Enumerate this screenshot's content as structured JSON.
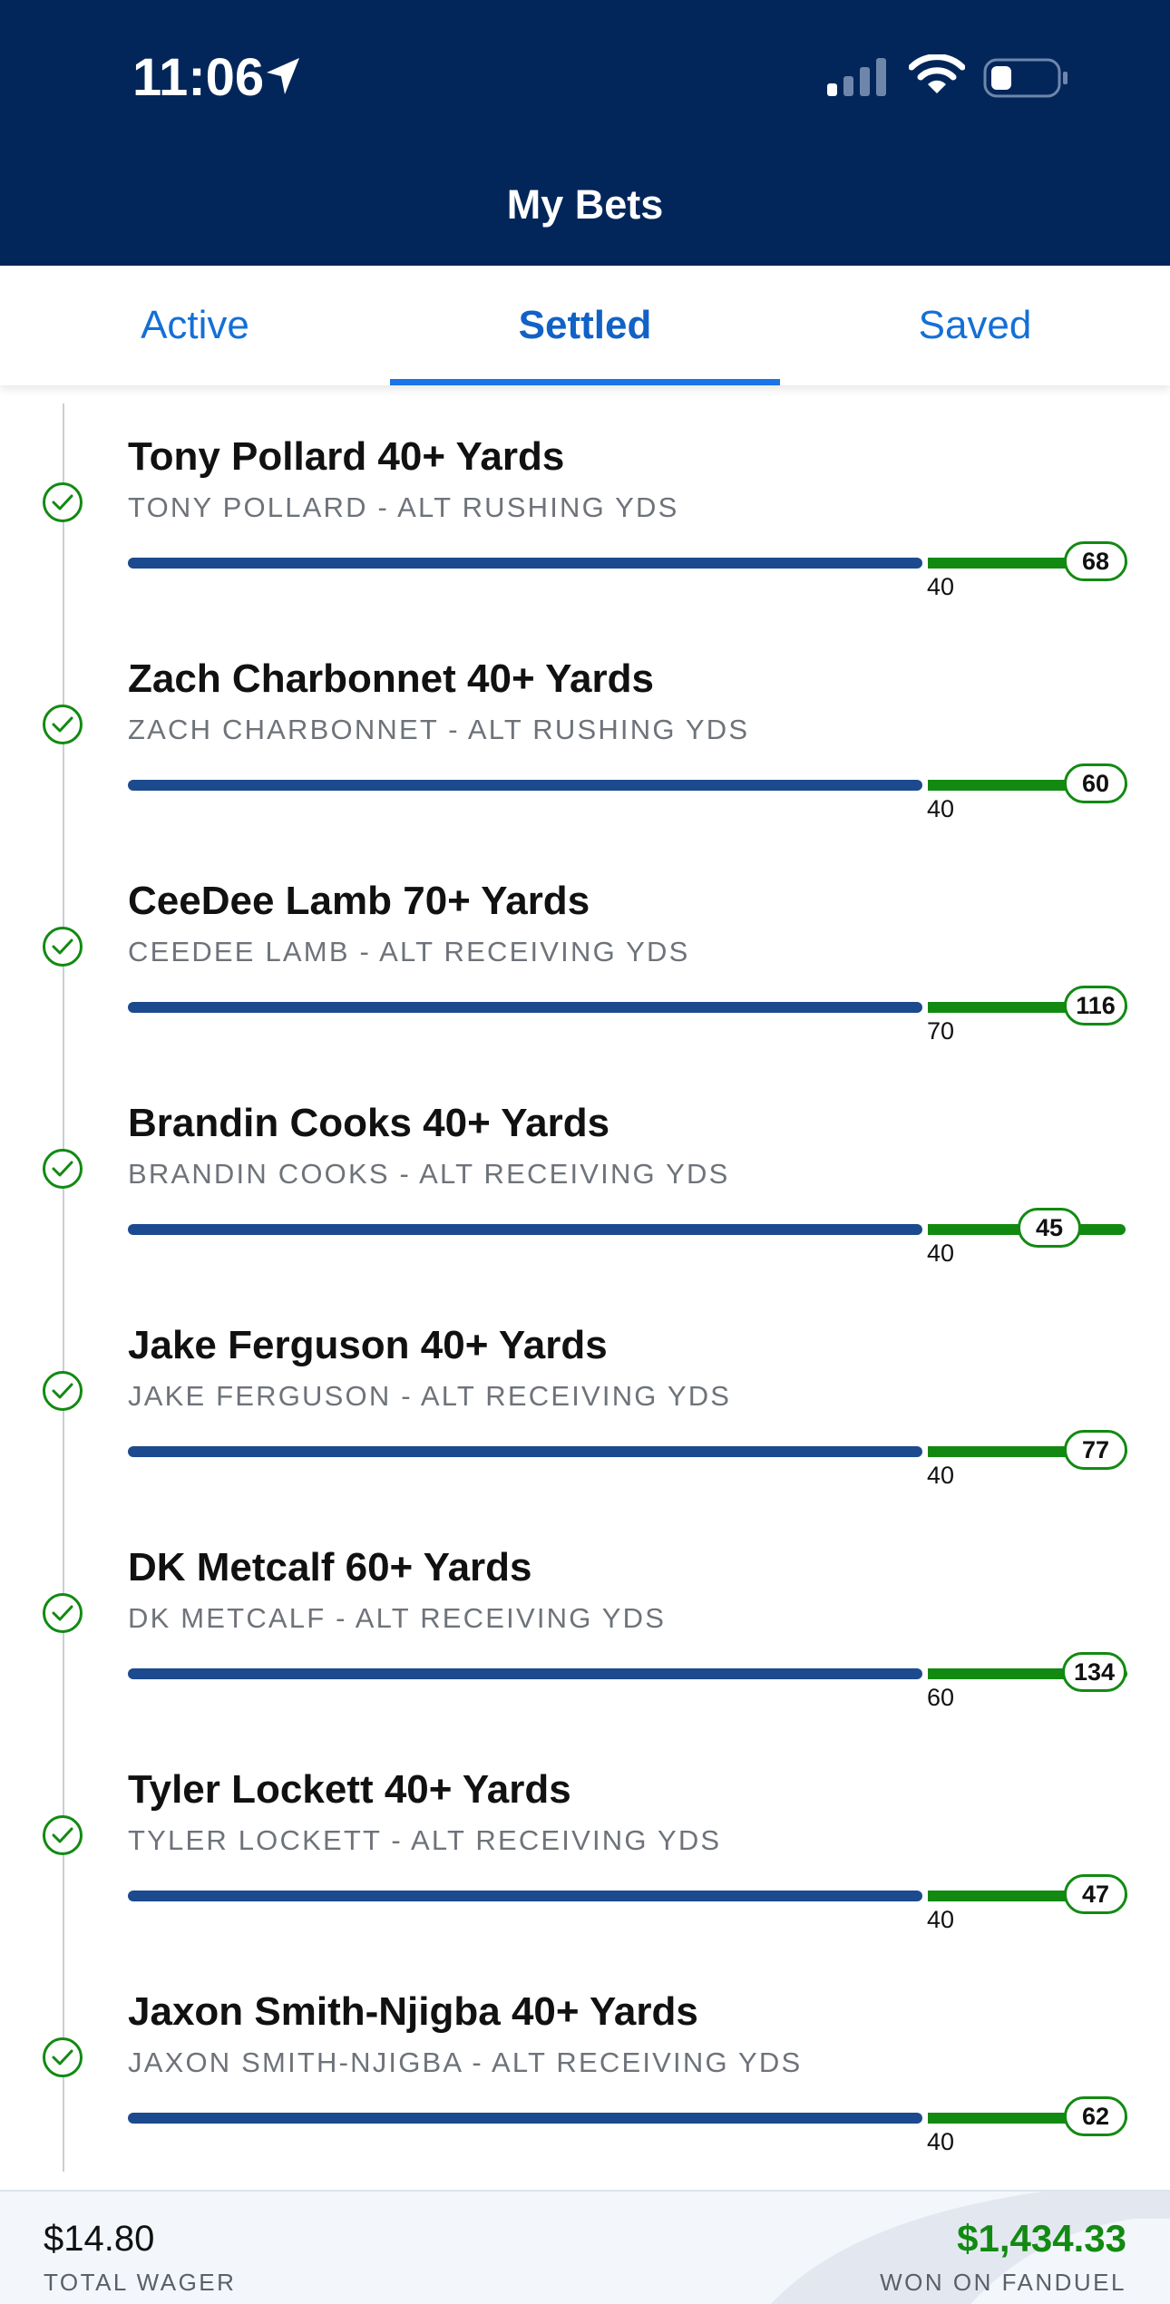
{
  "status_bar": {
    "time": "11:06",
    "icons": [
      "location-arrow-icon",
      "cellular-signal-icon",
      "wifi-icon",
      "battery-icon"
    ]
  },
  "header": {
    "title": "My Bets"
  },
  "tabs": [
    {
      "label": "Active",
      "active": false
    },
    {
      "label": "Settled",
      "active": true
    },
    {
      "label": "Saved",
      "active": false
    }
  ],
  "bets": [
    {
      "title": "Tony Pollard 40+ Yards",
      "subtitle": "TONY POLLARD - ALT RUSHING YDS",
      "threshold": "40",
      "result": "68",
      "status": "won"
    },
    {
      "title": "Zach Charbonnet 40+ Yards",
      "subtitle": "ZACH CHARBONNET - ALT RUSHING YDS",
      "threshold": "40",
      "result": "60",
      "status": "won"
    },
    {
      "title": "CeeDee Lamb 70+ Yards",
      "subtitle": "CEEDEE LAMB - ALT RECEIVING YDS",
      "threshold": "70",
      "result": "116",
      "status": "won"
    },
    {
      "title": "Brandin Cooks 40+ Yards",
      "subtitle": "BRANDIN COOKS - ALT RECEIVING YDS",
      "threshold": "40",
      "result": "45",
      "status": "won"
    },
    {
      "title": "Jake Ferguson 40+ Yards",
      "subtitle": "JAKE FERGUSON - ALT RECEIVING YDS",
      "threshold": "40",
      "result": "77",
      "status": "won"
    },
    {
      "title": "DK Metcalf 60+ Yards",
      "subtitle": "DK METCALF - ALT RECEIVING YDS",
      "threshold": "60",
      "result": "134",
      "status": "won"
    },
    {
      "title": "Tyler Lockett 40+ Yards",
      "subtitle": "TYLER LOCKETT - ALT RECEIVING YDS",
      "threshold": "40",
      "result": "47",
      "status": "won"
    },
    {
      "title": "Jaxon Smith-Njigba 40+ Yards",
      "subtitle": "JAXON SMITH-NJIGBA - ALT RECEIVING YDS",
      "threshold": "40",
      "result": "62",
      "status": "won"
    }
  ],
  "footer": {
    "total_wager": "$14.80",
    "total_wager_label": "TOTAL WAGER",
    "won_amount": "$1,434.33",
    "won_label": "WON ON FANDUEL"
  },
  "colors": {
    "header_bg": "#03265a",
    "tab_active": "#1162c6",
    "bar_blue": "#1c4a8e",
    "bar_green": "#128a12",
    "won_green": "#128a12"
  }
}
